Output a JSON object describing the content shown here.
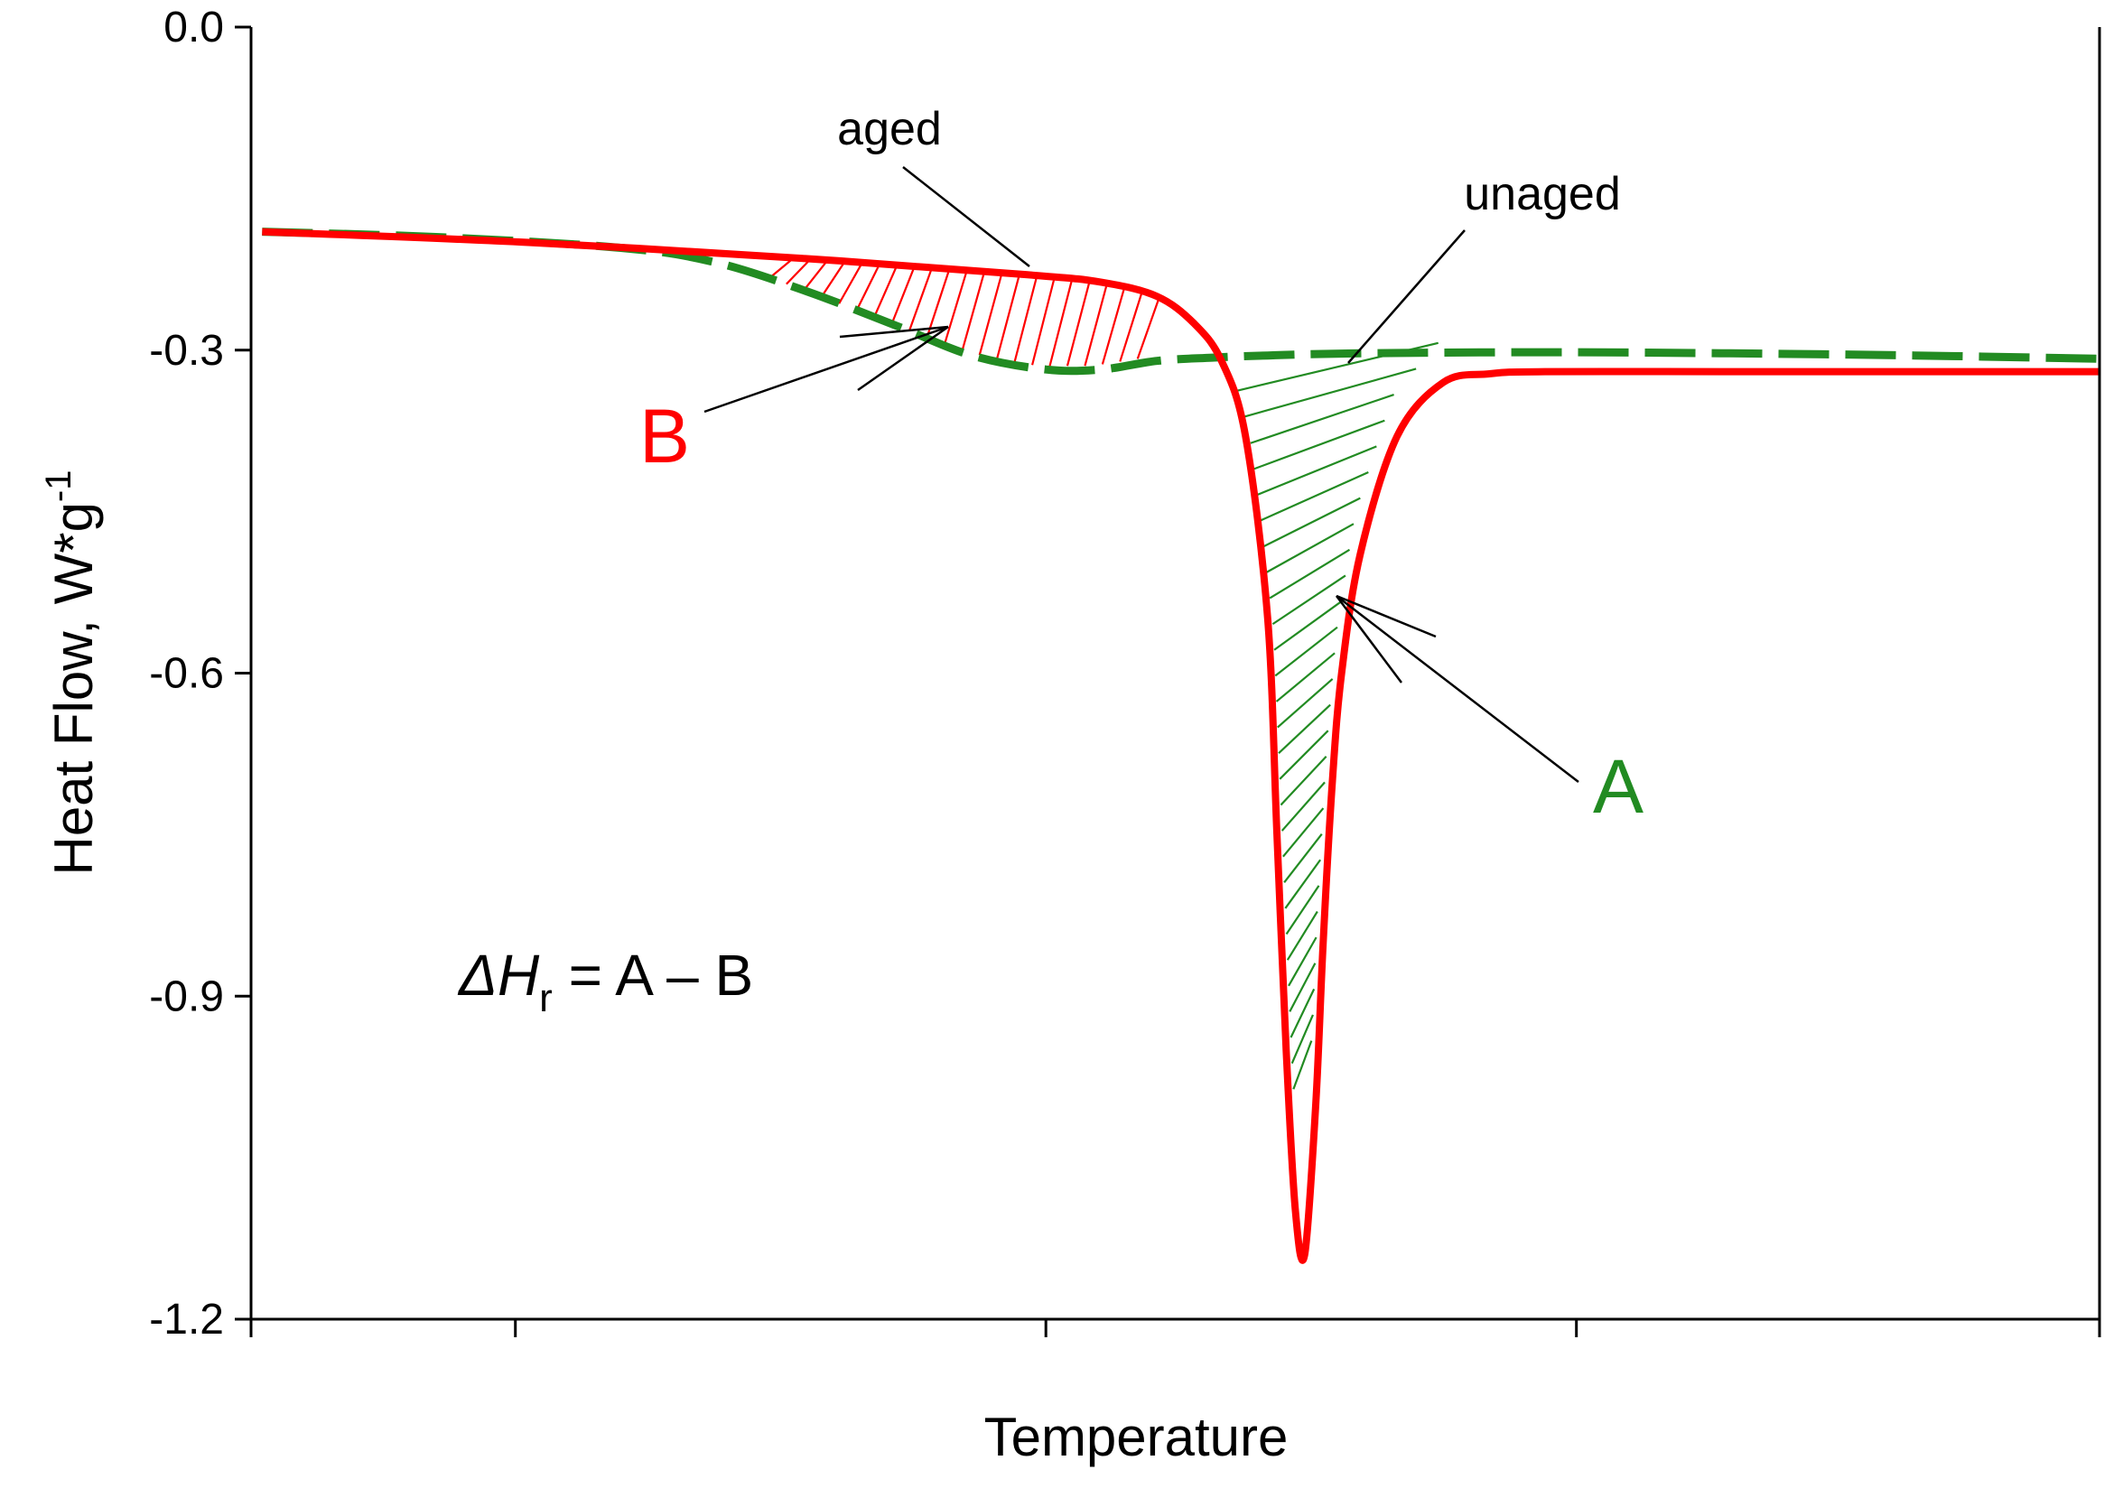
{
  "chart_data": {
    "type": "line",
    "title": "",
    "xlabel": "Temperature",
    "ylabel": "Heat Flow, W*g",
    "ylabel_sup": "-1",
    "ylim": [
      -1.2,
      0.0
    ],
    "y_ticks": [
      "0.0",
      "-0.3",
      "-0.6",
      "-0.9",
      "-1.2"
    ],
    "x_range": [
      0,
      10
    ],
    "x_minor_ticks": [
      0,
      1.43,
      4.3,
      7.17,
      10
    ],
    "series": [
      {
        "name": "aged",
        "color": "#ff0000",
        "style": "solid",
        "x": [
          0.06,
          1.5,
          3.0,
          4.2,
          4.6,
          4.9,
          5.1,
          5.25,
          5.38,
          5.5,
          5.55,
          5.6,
          5.65,
          5.7,
          5.76,
          5.8,
          5.85,
          5.9,
          6.0,
          6.2,
          6.45,
          6.7,
          7.0,
          8.0,
          9.0,
          10.0
        ],
        "y": [
          -0.19,
          -0.2,
          -0.215,
          -0.23,
          -0.237,
          -0.25,
          -0.275,
          -0.31,
          -0.38,
          -0.55,
          -0.75,
          -0.95,
          -1.1,
          -1.14,
          -1.0,
          -0.85,
          -0.7,
          -0.6,
          -0.49,
          -0.38,
          -0.33,
          -0.322,
          -0.32,
          -0.32,
          -0.32,
          -0.32
        ]
      },
      {
        "name": "unaged",
        "color": "#228b22",
        "style": "dashed",
        "x": [
          0.06,
          1.0,
          2.0,
          2.5,
          3.0,
          3.5,
          3.9,
          4.3,
          4.6,
          4.9,
          5.2,
          5.5,
          6.0,
          7.0,
          8.0,
          9.0,
          10.0
        ],
        "y": [
          -0.19,
          -0.195,
          -0.205,
          -0.218,
          -0.245,
          -0.278,
          -0.305,
          -0.318,
          -0.318,
          -0.31,
          -0.307,
          -0.305,
          -0.303,
          -0.302,
          -0.303,
          -0.305,
          -0.308
        ]
      }
    ],
    "annotations": {
      "aged_label": "aged",
      "unaged_label": "unaged",
      "area_a_label": "A",
      "area_b_label": "B",
      "formula_delta": "ΔH",
      "formula_sub": "r",
      "formula_rest": " = A – B"
    }
  }
}
